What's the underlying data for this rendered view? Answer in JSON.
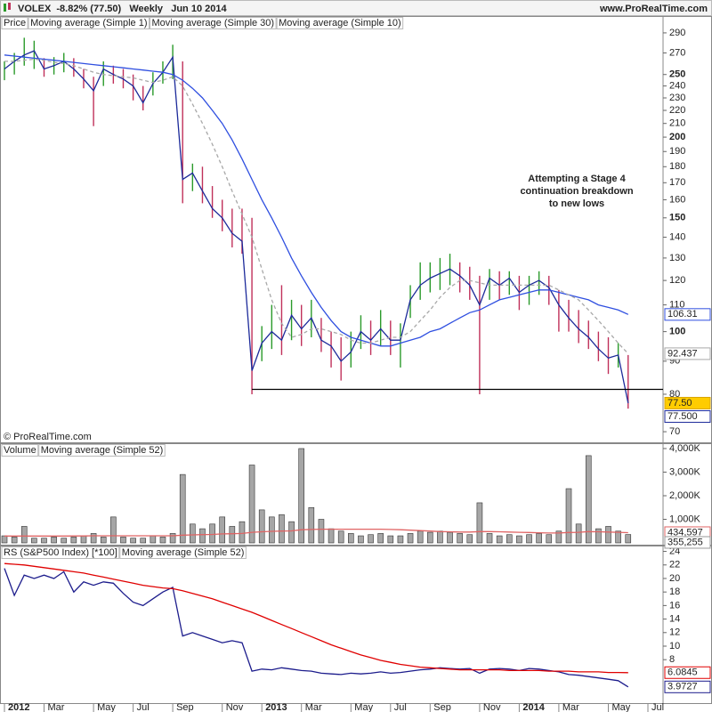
{
  "header": {
    "title": "VOLEX  -8.82% (77.50)   Weekly   Jun 10 2014",
    "site": "www.ProRealTime.com"
  },
  "copyright": "© ProRealTime.com",
  "chart_data": [
    {
      "type": "ohlc",
      "label": "Price",
      "log": true,
      "ylim": [
        67.4,
        306
      ],
      "yticks": [
        290,
        270,
        250,
        240,
        230,
        220,
        210,
        200,
        190,
        180,
        170,
        160,
        150,
        140,
        130,
        120,
        110,
        100,
        90,
        80,
        70
      ],
      "up_color": "#2a9a2a",
      "down_color": "#c0305a",
      "last_label": "77.50",
      "high": [
        262,
        270,
        285,
        282,
        265,
        266,
        270,
        265,
        255,
        248,
        262,
        258,
        255,
        250,
        240,
        252,
        262,
        278,
        262,
        182,
        180,
        168,
        160,
        155,
        155,
        150,
        102,
        110,
        118,
        112,
        110,
        112,
        105,
        100,
        98,
        100,
        106,
        104,
        108,
        104,
        103,
        118,
        128,
        128,
        130,
        132,
        128,
        126,
        122,
        125,
        124,
        124,
        122,
        122,
        124,
        122,
        116,
        112,
        108,
        104,
        100,
        98,
        96,
        92,
        null,
        null
      ],
      "low": [
        245,
        250,
        258,
        255,
        248,
        250,
        252,
        248,
        238,
        208,
        240,
        242,
        238,
        228,
        220,
        232,
        242,
        246,
        158,
        165,
        158,
        150,
        143,
        135,
        132,
        80,
        90,
        94,
        92,
        97,
        95,
        98,
        93,
        88,
        84,
        88,
        94,
        92,
        95,
        92,
        88,
        105,
        112,
        115,
        116,
        118,
        115,
        112,
        80,
        112,
        112,
        114,
        108,
        110,
        114,
        110,
        100,
        100,
        96,
        94,
        90,
        86,
        88,
        76,
        null,
        null
      ],
      "series": [
        {
          "name": "Moving average (Simple 1)",
          "color": "#1c2a9a",
          "last_label": "77.500",
          "values": [
            255,
            262,
            268,
            272,
            255,
            258,
            262,
            255,
            246,
            236,
            255,
            250,
            246,
            240,
            226,
            242,
            252,
            266,
            172,
            176,
            165,
            155,
            150,
            142,
            138,
            87,
            96,
            100,
            97,
            106,
            101,
            105,
            97,
            95,
            90,
            93,
            100,
            97,
            101,
            97,
            97,
            112,
            118,
            121,
            123,
            125,
            122,
            118,
            110,
            121,
            118,
            121,
            115,
            118,
            120,
            117,
            110,
            105,
            101,
            98,
            94,
            91,
            92,
            77.5,
            null,
            null
          ]
        },
        {
          "name": "Moving average (Simple 30)",
          "color": "#2f4fe0",
          "values": [
            268,
            267,
            266,
            265,
            264,
            263,
            262,
            261,
            260,
            259,
            258,
            257,
            256,
            255,
            254,
            253,
            252,
            250,
            245,
            238,
            230,
            220,
            210,
            198,
            185,
            172,
            160,
            150,
            140,
            130,
            122,
            115,
            109,
            104,
            100,
            98,
            97,
            96,
            95,
            95,
            96,
            97,
            98,
            100,
            101,
            103,
            105,
            107,
            108,
            110,
            112,
            113,
            114,
            115,
            116,
            116,
            115,
            114,
            113,
            112,
            110,
            109,
            108,
            106.31,
            null,
            null
          ]
        },
        {
          "name": "Moving average (Simple 10)",
          "color": "#a8a8a8",
          "dashed": true,
          "values": [
            262,
            262,
            263,
            264,
            263,
            261,
            260,
            258,
            255,
            252,
            250,
            249,
            248,
            247,
            245,
            243,
            245,
            248,
            240,
            225,
            210,
            195,
            180,
            165,
            152,
            140,
            125,
            112,
            103,
            98,
            99,
            101,
            101,
            100,
            99,
            97,
            96,
            96,
            97,
            98,
            98,
            100,
            104,
            108,
            113,
            117,
            120,
            120,
            119,
            118,
            118,
            118,
            118,
            118,
            118,
            118,
            116,
            114,
            112,
            108,
            104,
            100,
            96,
            92.437,
            null,
            null
          ]
        }
      ],
      "support_line": 81.4,
      "annotation": [
        "Attempting a Stage 4",
        "continuation breakdown",
        "to new lows"
      ]
    },
    {
      "type": "bar",
      "label": "Volume",
      "color": "#a6a6a6",
      "ylim": [
        0,
        4150000
      ],
      "last_label": "355,255",
      "yticks": [
        {
          "value": 1000000,
          "label": "1,000K"
        },
        {
          "value": 2000000,
          "label": "2,000K"
        },
        {
          "value": 3000000,
          "label": "3,000K"
        },
        {
          "value": 4000000,
          "label": "4,000K"
        }
      ],
      "values": [
        300000,
        250000,
        700000,
        200000,
        200000,
        250000,
        200000,
        250000,
        300000,
        400000,
        250000,
        1100000,
        250000,
        200000,
        200000,
        300000,
        250000,
        400000,
        2900000,
        800000,
        600000,
        800000,
        1100000,
        700000,
        900000,
        3300000,
        1400000,
        1100000,
        1200000,
        900000,
        4000000,
        1500000,
        1000000,
        600000,
        500000,
        400000,
        300000,
        350000,
        400000,
        300000,
        300000,
        400000,
        500000,
        450000,
        500000,
        450000,
        400000,
        350000,
        1700000,
        400000,
        300000,
        350000,
        300000,
        350000,
        400000,
        350000,
        500000,
        2300000,
        800000,
        3700000,
        600000,
        700000,
        500000,
        355255,
        null,
        null
      ],
      "series": [
        {
          "name": "Moving average (Simple 52)",
          "color": "#e06464",
          "last_label": "434,597",
          "values": [
            290000,
            290000,
            290000,
            290000,
            290000,
            290000,
            290000,
            295000,
            295000,
            300000,
            300000,
            300000,
            300000,
            300000,
            300000,
            300000,
            300000,
            300000,
            330000,
            340000,
            350000,
            360000,
            380000,
            390000,
            400000,
            450000,
            470000,
            490000,
            500000,
            510000,
            560000,
            570000,
            580000,
            580000,
            580000,
            580000,
            580000,
            580000,
            580000,
            570000,
            560000,
            540000,
            520000,
            500000,
            480000,
            470000,
            460000,
            460000,
            480000,
            480000,
            470000,
            460000,
            450000,
            440000,
            430000,
            420000,
            420000,
            440000,
            450000,
            480000,
            470000,
            460000,
            450000,
            434597,
            null,
            null
          ]
        }
      ]
    },
    {
      "type": "line",
      "ylim": [
        1.58,
        24.6
      ],
      "yticks": [
        24,
        22,
        20,
        18,
        16,
        14,
        12,
        10,
        8
      ],
      "categories": [
        "2012",
        null,
        null,
        null,
        "Mar",
        null,
        null,
        null,
        null,
        "May",
        null,
        null,
        null,
        "Jul",
        null,
        null,
        null,
        "Sep",
        null,
        null,
        null,
        null,
        "Nov",
        null,
        null,
        null,
        "2013",
        null,
        null,
        null,
        "Mar",
        null,
        null,
        null,
        null,
        "May",
        null,
        null,
        null,
        "Jul",
        null,
        null,
        null,
        "Sep",
        null,
        null,
        null,
        null,
        "Nov",
        null,
        null,
        null,
        "2014",
        null,
        null,
        null,
        "Mar",
        null,
        null,
        null,
        null,
        "May",
        null,
        null,
        null,
        "Jul"
      ],
      "series": [
        {
          "name": "RS (S&P500 Index) [*100]",
          "color": "#1c1c8c",
          "values": [
            21.5,
            17.5,
            20.5,
            20,
            20.5,
            20,
            21,
            18,
            19.5,
            19,
            19.5,
            19.3,
            17.8,
            16.5,
            16,
            17,
            18,
            18.7,
            11.5,
            12,
            11.5,
            11,
            10.5,
            10.8,
            10.5,
            6.3,
            6.6,
            6.5,
            6.8,
            6.6,
            6.4,
            6.3,
            6,
            5.9,
            5.8,
            6,
            5.9,
            6,
            6.2,
            6,
            6.1,
            6.3,
            6.5,
            6.6,
            6.8,
            6.7,
            6.6,
            6.7,
            6,
            6.6,
            6.7,
            6.6,
            6.4,
            6.7,
            6.6,
            6.4,
            6.2,
            5.8,
            5.7,
            5.5,
            5.3,
            5.1,
            4.9,
            3.9727,
            null,
            null
          ]
        },
        {
          "name": "Moving average (Simple 52)",
          "color": "#e00000",
          "values": [
            22.2,
            22.1,
            22,
            21.8,
            21.6,
            21.4,
            21.2,
            21,
            20.8,
            20.5,
            20.2,
            19.9,
            19.6,
            19.3,
            19,
            18.8,
            18.6,
            18.5,
            18.2,
            17.8,
            17.4,
            17,
            16.5,
            16,
            15.5,
            15,
            14.4,
            13.8,
            13.2,
            12.6,
            12,
            11.4,
            10.8,
            10.2,
            9.7,
            9.2,
            8.7,
            8.3,
            7.9,
            7.6,
            7.3,
            7.1,
            6.9,
            6.8,
            6.7,
            6.6,
            6.5,
            6.5,
            6.5,
            6.5,
            6.5,
            6.4,
            6.4,
            6.4,
            6.4,
            6.3,
            6.3,
            6.3,
            6.2,
            6.2,
            6.2,
            6.1,
            6.1,
            6.0845,
            null,
            null
          ]
        }
      ]
    }
  ]
}
